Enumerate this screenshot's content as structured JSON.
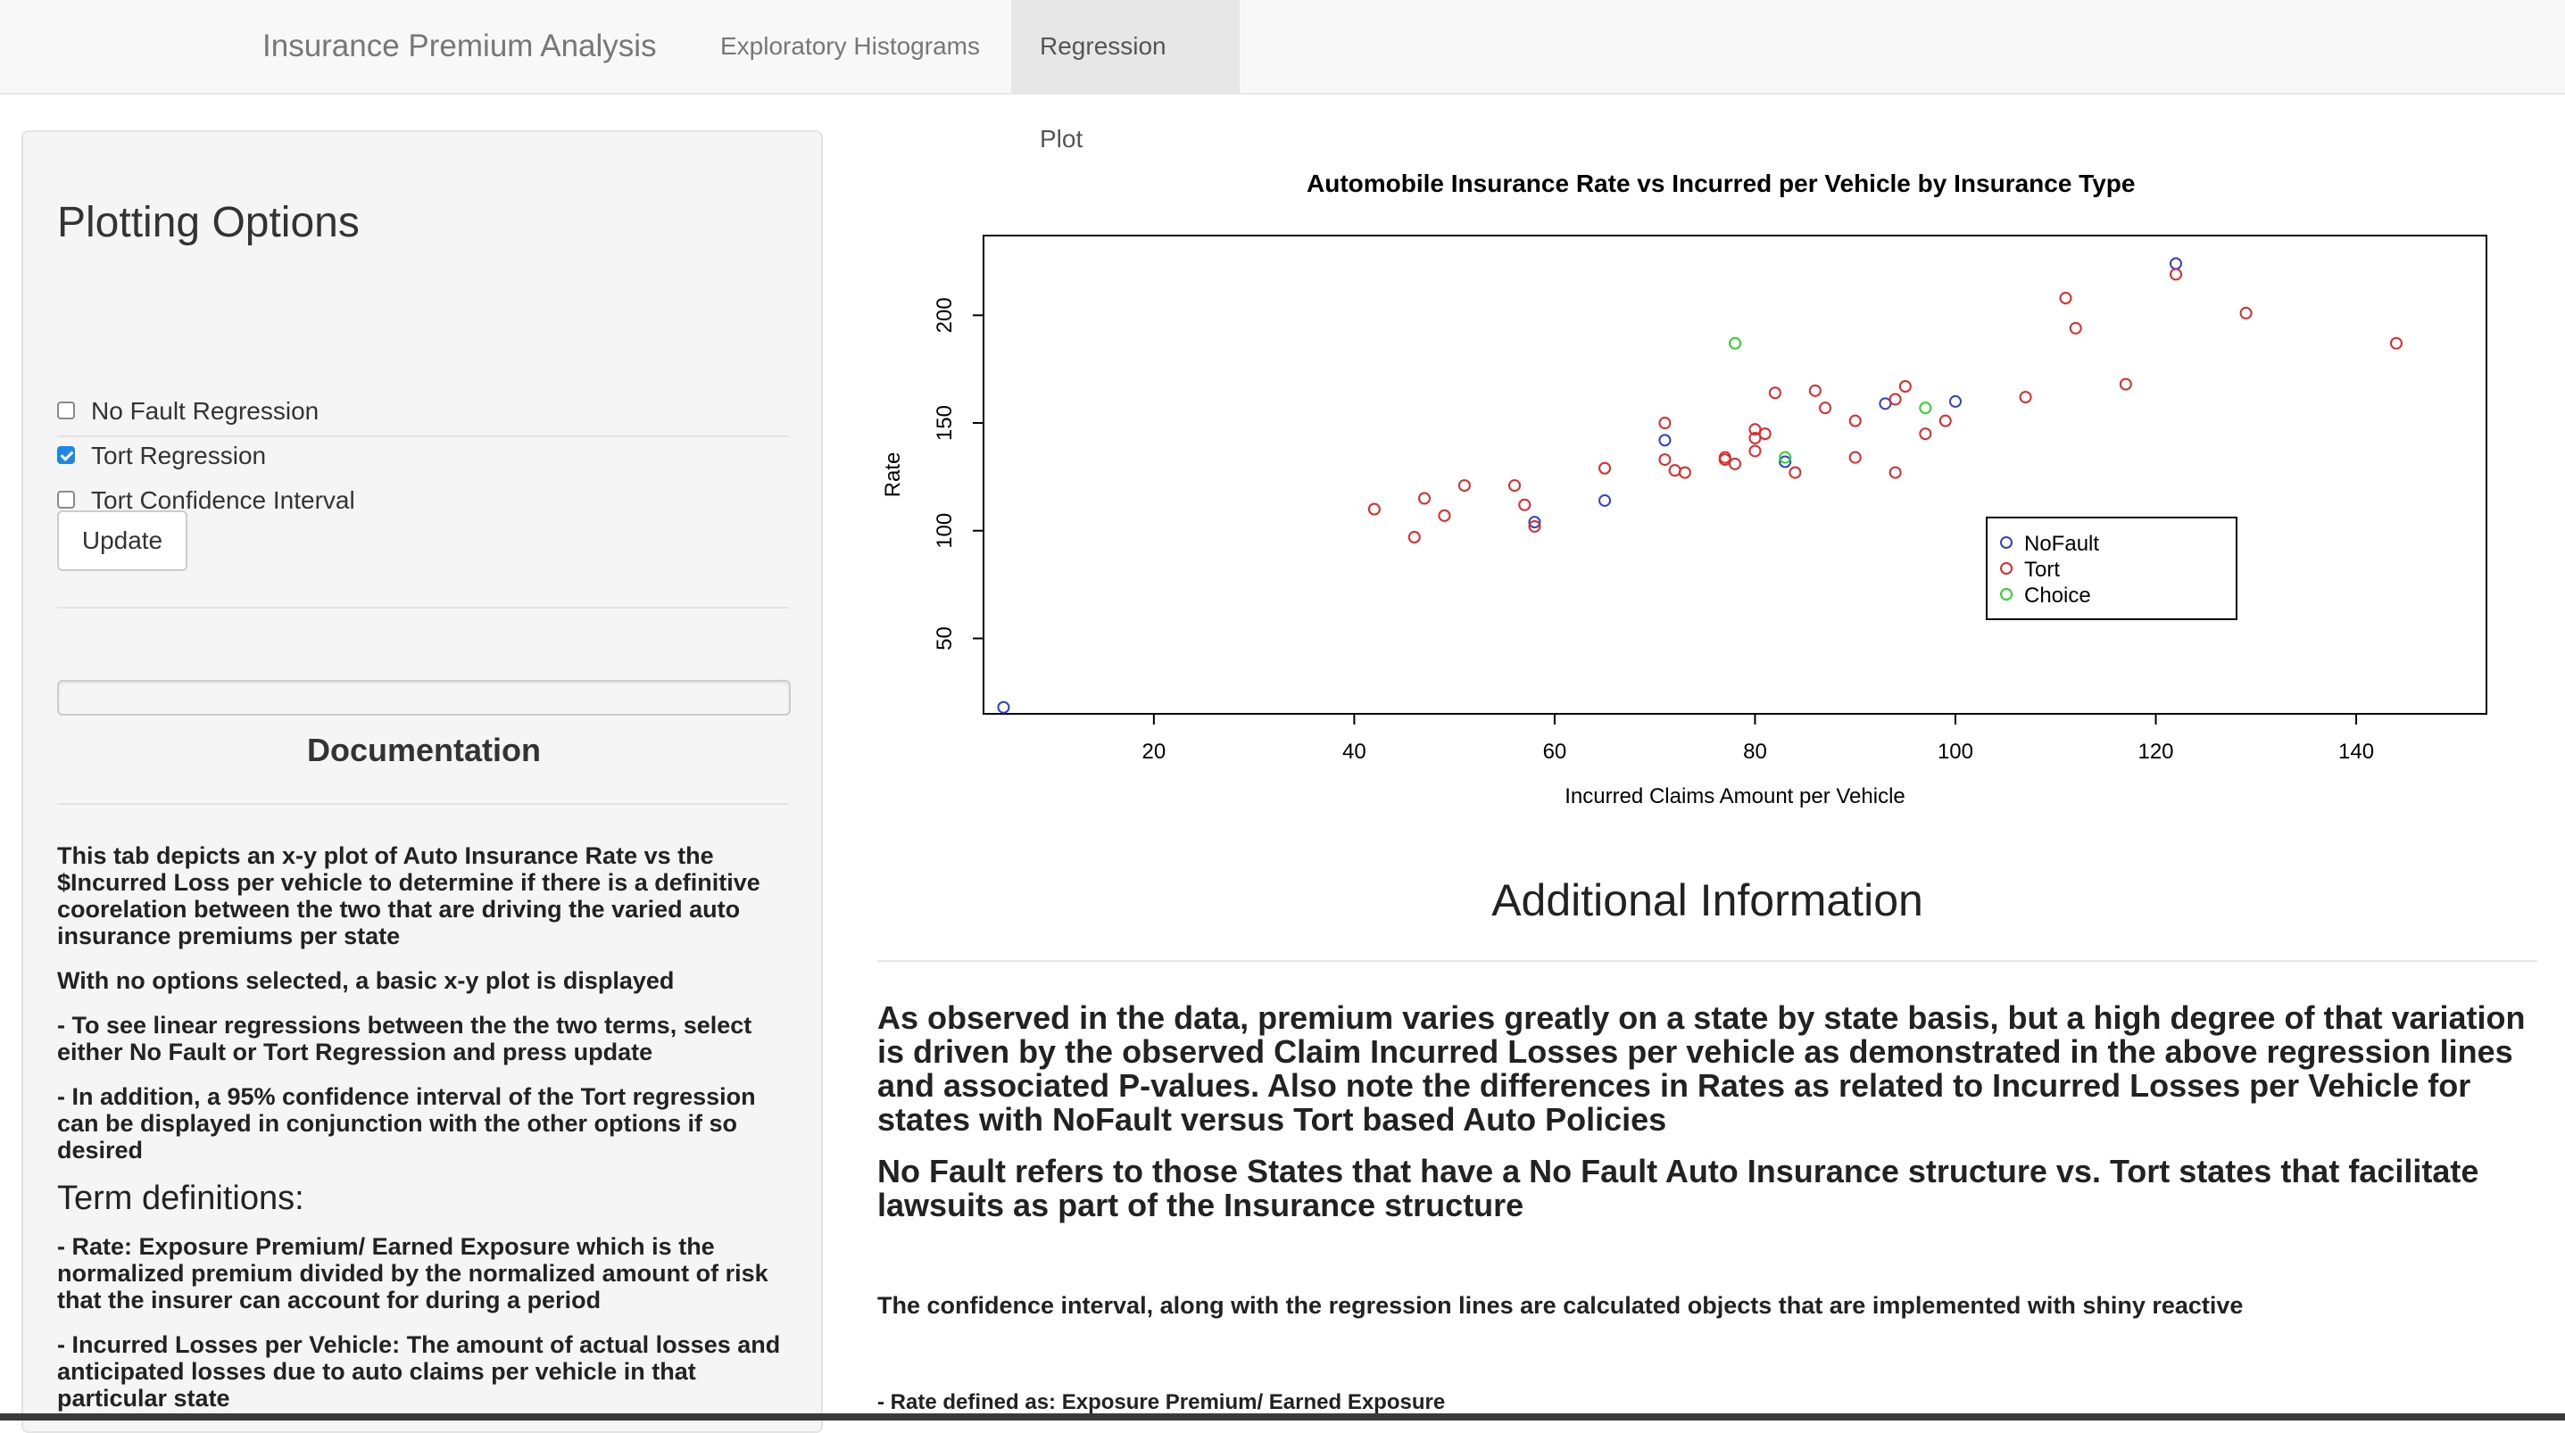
{
  "navbar": {
    "brand": "Insurance Premium Analysis",
    "tabs": [
      {
        "label": "Exploratory Histograms",
        "active": false
      },
      {
        "label": "Regression Plot",
        "active": true
      }
    ]
  },
  "sidebar": {
    "title": "Plotting Options",
    "checkboxes": [
      {
        "label": "No Fault Regression",
        "checked": false
      },
      {
        "label": "Tort Regression",
        "checked": true
      },
      {
        "label": "Tort Confidence Interval",
        "checked": false
      }
    ],
    "update_label": "Update",
    "documentation": {
      "title": "Documentation",
      "p1": "This tab depicts an x-y plot of Auto Insurance Rate vs the $Incurred Loss per vehicle to determine if there is a definitive coorelation between the two that are driving the varied auto insurance premiums per state",
      "p2": "With no options selected, a basic x-y plot is displayed",
      "p3": "- To see linear regressions between the the two terms, select either No Fault or Tort Regression and press update",
      "p4": "- In addition, a 95% confidence interval of the Tort regression can be displayed in conjunction with the other options if so desired",
      "terms_title": "Term definitions:",
      "t1": "- Rate: Exposure Premium/ Earned Exposure which is the normalized premium divided by the normalized amount of risk that the insurer can account for during a period",
      "t2": "- Incurred Losses per Vehicle: The amount of actual losses and anticipated losses due to auto claims per vehicle in that particular state"
    }
  },
  "main": {
    "additional_title": "Additional Information",
    "p1": "As observed in the data, premium varies greatly on a state by state basis, but a high degree of that variation is driven by the observed Claim Incurred Losses per vehicle as demonstrated in the above regression lines and associated P-values. Also note the differences in Rates as related to Incurred Losses per Vehicle for states with NoFault versus Tort based Auto Policies",
    "p2": "No Fault refers to those States that have a No Fault Auto Insurance structure vs. Tort states that facilitate lawsuits as part of the Insurance structure",
    "p3": "The confidence interval, along with the regression lines are calculated objects that are implemented with shiny reactive",
    "p4": "- Rate defined as: Exposure Premium/ Earned Exposure"
  },
  "chart_data": {
    "type": "scatter",
    "title": "Automobile Insurance Rate vs Incurred per Vehicle by Insurance Type",
    "xlabel": "Incurred Claims Amount per Vehicle",
    "ylabel": "Rate",
    "xlim": [
      3,
      153
    ],
    "ylim": [
      15,
      237
    ],
    "xticks": [
      20,
      40,
      60,
      80,
      100,
      120,
      140
    ],
    "yticks": [
      50,
      100,
      150,
      200
    ],
    "legend_position": "bottom-right",
    "series": [
      {
        "name": "NoFault",
        "color": "#2e3fd8",
        "points": [
          [
            5,
            18
          ],
          [
            58,
            104
          ],
          [
            65,
            114
          ],
          [
            71,
            142
          ],
          [
            83,
            132
          ],
          [
            93,
            159
          ],
          [
            100,
            160
          ],
          [
            122,
            224
          ]
        ]
      },
      {
        "name": "Tort",
        "color": "#e02a2a",
        "points": [
          [
            42,
            110
          ],
          [
            46,
            97
          ],
          [
            47,
            115
          ],
          [
            49,
            107
          ],
          [
            51,
            121
          ],
          [
            56,
            121
          ],
          [
            57,
            112
          ],
          [
            58,
            102
          ],
          [
            65,
            129
          ],
          [
            71,
            150
          ],
          [
            71,
            133
          ],
          [
            72,
            128
          ],
          [
            73,
            127
          ],
          [
            77,
            134
          ],
          [
            77,
            133
          ],
          [
            78,
            131
          ],
          [
            80,
            147
          ],
          [
            80,
            143
          ],
          [
            80,
            137
          ],
          [
            81,
            145
          ],
          [
            82,
            164
          ],
          [
            84,
            127
          ],
          [
            86,
            165
          ],
          [
            87,
            157
          ],
          [
            90,
            151
          ],
          [
            90,
            134
          ],
          [
            94,
            161
          ],
          [
            94,
            127
          ],
          [
            95,
            167
          ],
          [
            97,
            145
          ],
          [
            99,
            151
          ],
          [
            107,
            162
          ],
          [
            111,
            208
          ],
          [
            112,
            194
          ],
          [
            117,
            168
          ],
          [
            122,
            219
          ],
          [
            129,
            201
          ],
          [
            144,
            187
          ]
        ]
      },
      {
        "name": "Choice",
        "color": "#2bd52b",
        "points": [
          [
            78,
            187
          ],
          [
            83,
            134
          ],
          [
            97,
            157
          ]
        ]
      }
    ]
  }
}
